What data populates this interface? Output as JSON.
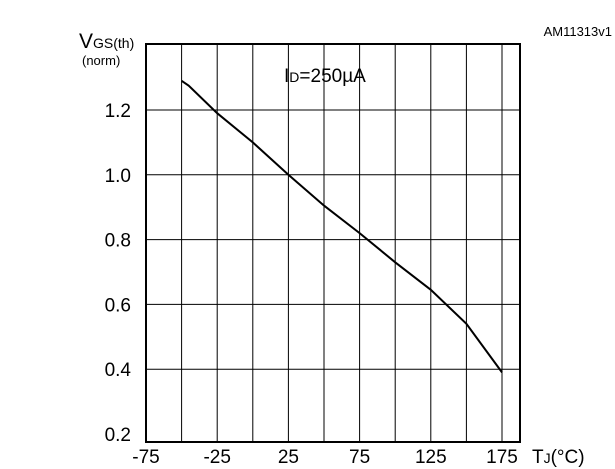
{
  "figure_id": "AM11313v1",
  "chart_data": {
    "type": "line",
    "ylabel": {
      "main": "V",
      "subscript": "GS(th)",
      "secondary": "(norm)"
    },
    "xlabel": {
      "main": "T",
      "subscript": "J",
      "unit": "(°C)"
    },
    "annotation": {
      "main": "I",
      "subscript": "D",
      "rest": "=250µA"
    },
    "xlim": [
      -75,
      175
    ],
    "ylim": [
      0.2,
      1.4
    ],
    "x_ticks": [
      -75,
      -25,
      25,
      75,
      125,
      175
    ],
    "x_tick_labels": [
      "-75",
      "-25",
      "25",
      "75",
      "125",
      "175"
    ],
    "y_ticks": [
      0.2,
      0.4,
      0.6,
      0.8,
      1.0,
      1.2
    ],
    "y_tick_labels": [
      "0.2",
      "0.4",
      "0.6",
      "0.8",
      "1.0",
      "1.2"
    ],
    "grid": true,
    "series": [
      {
        "x": [
          -50,
          -45,
          -25,
          0,
          25,
          50,
          75,
          100,
          125,
          150,
          175
        ],
        "y": [
          1.29,
          1.275,
          1.19,
          1.1,
          1.0,
          0.905,
          0.82,
          0.73,
          0.645,
          0.54,
          0.39
        ]
      }
    ]
  }
}
